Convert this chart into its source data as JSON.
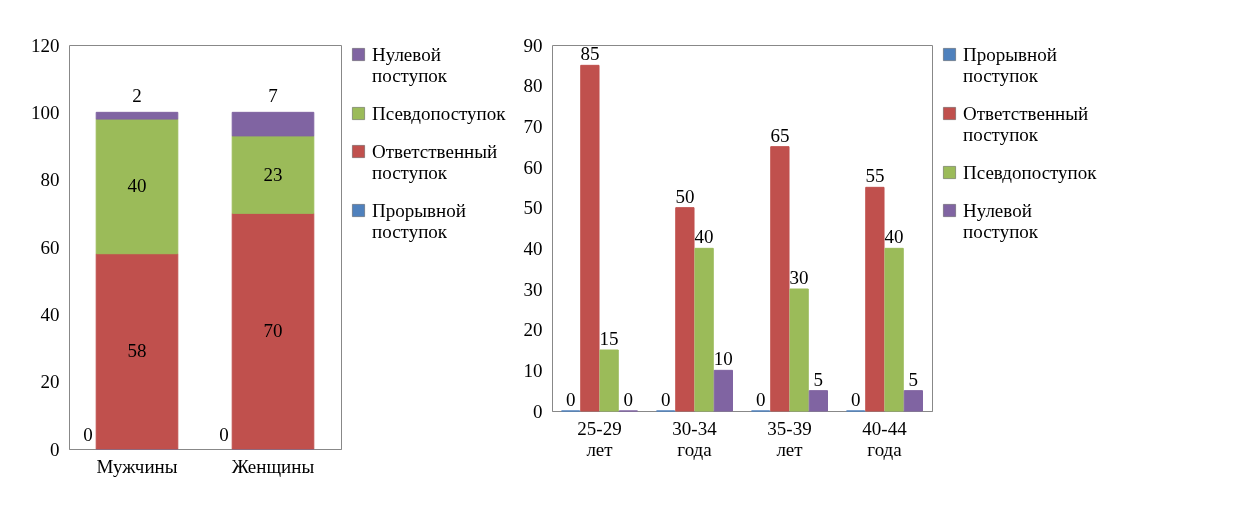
{
  "chart_data": [
    {
      "type": "bar",
      "stacked": true,
      "categories": [
        "Мужчины",
        "Женщины"
      ],
      "ylim": [
        0,
        120
      ],
      "yticks": [
        0,
        20,
        40,
        60,
        80,
        100,
        120
      ],
      "grid": false,
      "legend": "right",
      "data_labels": true,
      "series": [
        {
          "name": "Прорывной поступок",
          "color": "#4f81bd",
          "values": [
            0,
            0
          ]
        },
        {
          "name": "Ответственный поступок",
          "color": "#c0504d",
          "values": [
            58,
            70
          ]
        },
        {
          "name": "Псевдопоступок",
          "color": "#9bbb59",
          "values": [
            40,
            23
          ]
        },
        {
          "name": "Нулевой поступок",
          "color": "#8064a2",
          "values": [
            2,
            7
          ]
        }
      ]
    },
    {
      "type": "bar",
      "categories": [
        "25-29 лет",
        "30-34 года",
        "35-39 лет",
        "40-44 года"
      ],
      "ylim": [
        0,
        90
      ],
      "yticks": [
        0,
        10,
        20,
        30,
        40,
        50,
        60,
        70,
        80,
        90
      ],
      "grid": false,
      "legend": "right",
      "data_labels": true,
      "series": [
        {
          "name": "Прорывной поступок",
          "color": "#4f81bd",
          "values": [
            0,
            0,
            0,
            0
          ]
        },
        {
          "name": "Ответственный поступок",
          "color": "#c0504d",
          "values": [
            85,
            50,
            65,
            55
          ]
        },
        {
          "name": "Псевдопоступок",
          "color": "#9bbb59",
          "values": [
            15,
            40,
            30,
            40
          ]
        },
        {
          "name": "Нулевой поступок",
          "color": "#8064a2",
          "values": [
            0,
            10,
            5,
            5
          ]
        }
      ]
    }
  ]
}
